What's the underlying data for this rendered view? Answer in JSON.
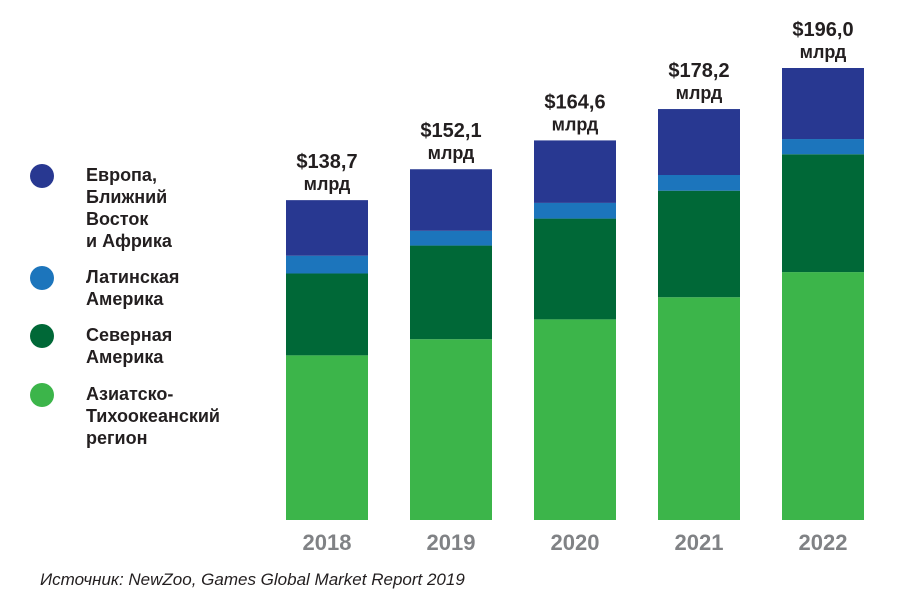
{
  "chart_data": {
    "type": "bar",
    "stacked": true,
    "categories": [
      "2018",
      "2019",
      "2020",
      "2021",
      "2022"
    ],
    "series": [
      {
        "name": "Азиатско-\nТихоокеанский\nрегион",
        "color": "#3cb54a",
        "values": [
          71.4,
          78.4,
          87.0,
          96.6,
          107.5
        ]
      },
      {
        "name": "Северная\nАмерика",
        "color": "#006837",
        "values": [
          35.5,
          40.6,
          43.7,
          46.2,
          51.1
        ]
      },
      {
        "name": "Латинская\nАмерика",
        "color": "#1c75bc",
        "values": [
          7.7,
          6.4,
          6.8,
          6.8,
          6.6
        ]
      },
      {
        "name": "Европа,\nБлижний\nВосток\nи Африка",
        "color": "#283891",
        "values": [
          24.1,
          26.7,
          27.1,
          28.6,
          30.8
        ]
      }
    ],
    "totals": [
      "$138,7",
      "$152,1",
      "$164,6",
      "$178,2",
      "$196,0"
    ],
    "total_unit": "млрд",
    "ylim": [
      0,
      196
    ]
  },
  "legend": [
    {
      "label": "Европа,\nБлижний\nВосток\nи Африка",
      "color": "#283891"
    },
    {
      "label": "Латинская\nАмерика",
      "color": "#1c75bc"
    },
    {
      "label": "Северная\nАмерика",
      "color": "#006837"
    },
    {
      "label": "Азиатско-\nТихоокеанский\nрегион",
      "color": "#3cb54a"
    }
  ],
  "source": "Источник: NewZoo, Games Global Market Report 2019",
  "colors": {
    "axis_label": "#808285",
    "text": "#231f20"
  }
}
